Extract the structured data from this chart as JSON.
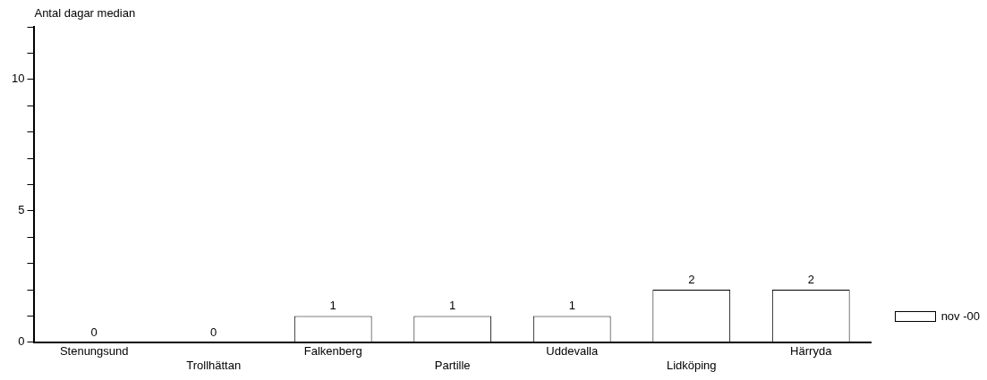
{
  "chart_data": {
    "type": "bar",
    "ylabel": "Antal dagar median",
    "categories": [
      "Stenungsund",
      "Trollhättan",
      "Falkenberg",
      "Partille",
      "Uddevalla",
      "Lidköping",
      "Härryda"
    ],
    "series": [
      {
        "name": "nov -00",
        "color": "#ffffff",
        "values": [
          0,
          0,
          1,
          1,
          1,
          2,
          2
        ]
      }
    ],
    "ylim": [
      0,
      12
    ],
    "yticks": [
      0,
      {
        "value": 1,
        "label": null
      },
      {
        "value": 2,
        "label": null
      },
      {
        "value": 3,
        "label": null
      },
      {
        "value": 4,
        "label": null
      },
      5,
      {
        "value": 6,
        "label": null
      },
      {
        "value": 7,
        "label": null
      },
      {
        "value": 8,
        "label": null
      },
      {
        "value": 9,
        "label": null
      },
      10,
      {
        "value": 11,
        "label": null
      },
      {
        "value": 12,
        "label": null
      }
    ],
    "data_labels": true,
    "grid": false,
    "legend": "right"
  }
}
